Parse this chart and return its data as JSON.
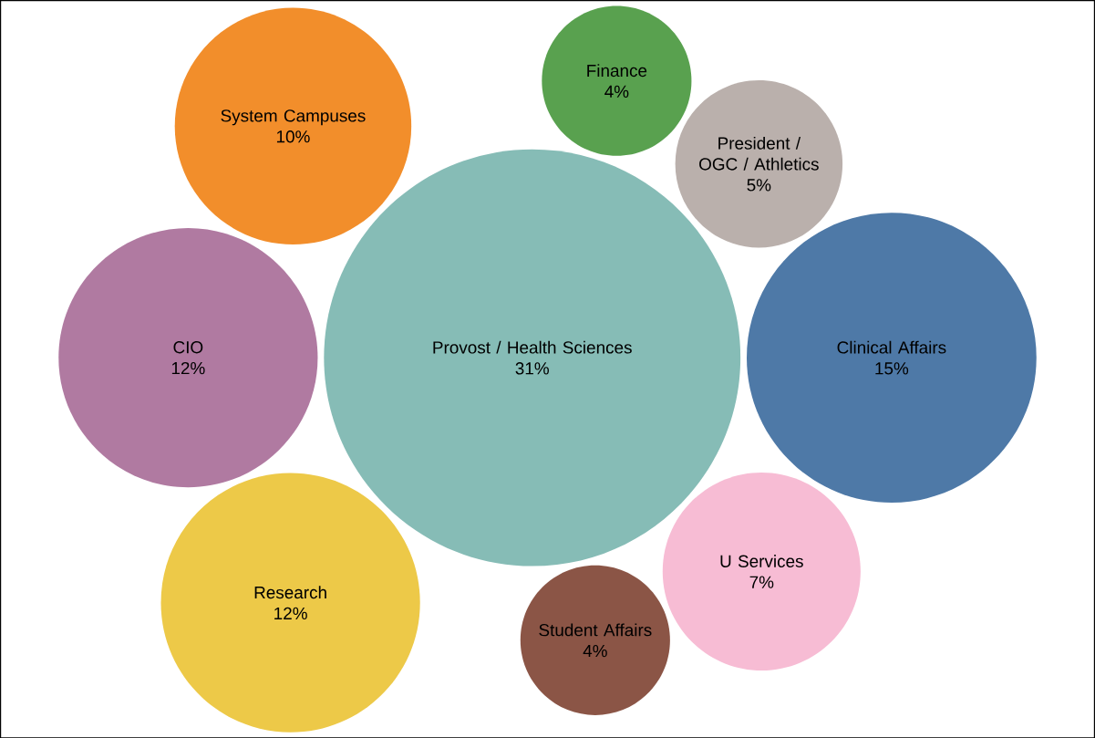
{
  "chart_data": {
    "type": "other",
    "categories": [
      "Provost / Health Sciences",
      "President / OGC / Athletics",
      "Finance",
      "Clinical Affairs",
      "U Services",
      "System Campuses",
      "CIO",
      "Research",
      "Student Affairs"
    ],
    "values": [
      31,
      5,
      4,
      15,
      7,
      10,
      12,
      12,
      4
    ],
    "value_labels": [
      "31%",
      "5%",
      "4%",
      "15%",
      "7%",
      "10%",
      "12%",
      "12%",
      "4%"
    ],
    "colors": [
      "#86bcb6",
      "#bab0ac",
      "#59a14f",
      "#4e79a7",
      "#f7bcd4",
      "#f28e2b",
      "#b07aa1",
      "#edc948",
      "#8b5546"
    ]
  }
}
